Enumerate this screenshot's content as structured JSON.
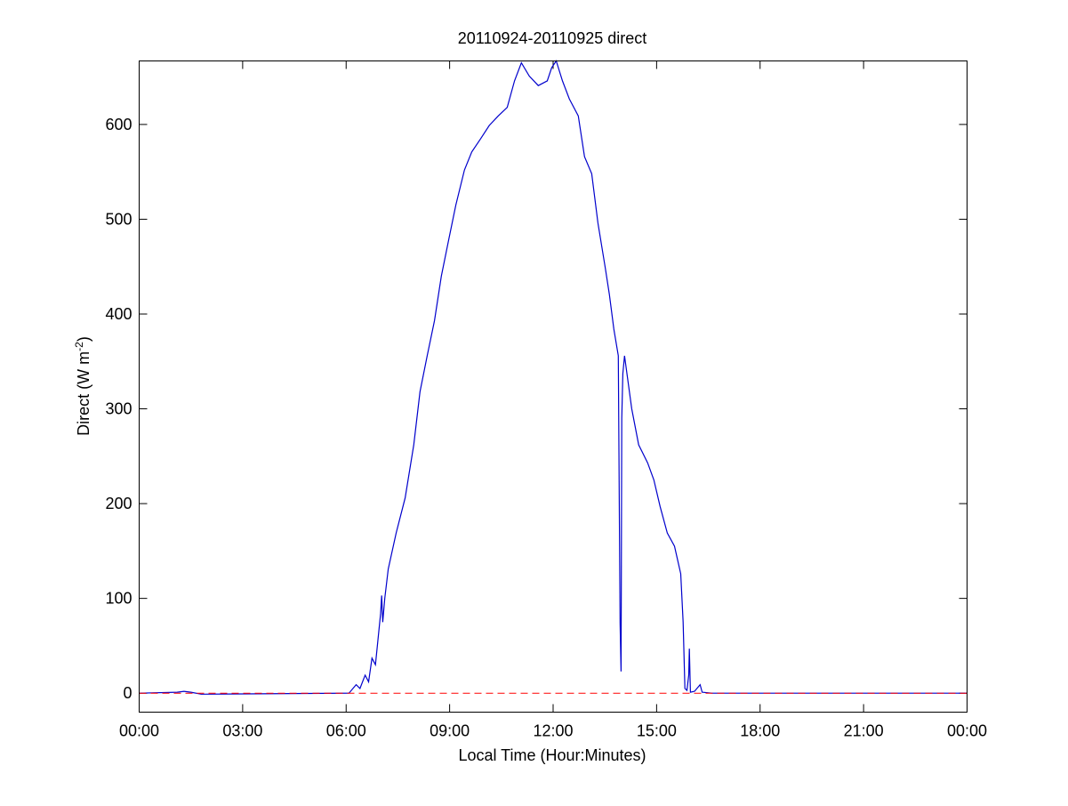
{
  "chart_data": {
    "type": "line",
    "title": "20110924-20110925 direct",
    "xlabel": "Local Time (Hour:Minutes)",
    "ylabel": "Direct (W m",
    "ylabel_superscript": "-2",
    "ylabel_suffix": ")",
    "x_unit": "hours",
    "xlim": [
      0,
      24
    ],
    "ylim": [
      -20,
      667
    ],
    "x_ticks": [
      0,
      3,
      6,
      9,
      12,
      15,
      18,
      21,
      24
    ],
    "x_tick_labels": [
      "00:00",
      "03:00",
      "06:00",
      "09:00",
      "12:00",
      "15:00",
      "18:00",
      "21:00",
      "00:00"
    ],
    "y_ticks": [
      0,
      100,
      200,
      300,
      400,
      500,
      600
    ],
    "y_tick_labels": [
      "0",
      "100",
      "200",
      "300",
      "400",
      "500",
      "600"
    ],
    "grid": false,
    "legend": "none",
    "series": [
      {
        "color": "#0000cc",
        "x": [
          0,
          1.1,
          1.3,
          1.5,
          1.8,
          6.08,
          6.29,
          6.4,
          6.55,
          6.65,
          6.75,
          6.85,
          7.0,
          7.03,
          7.06,
          7.12,
          7.22,
          7.45,
          7.71,
          7.96,
          8.14,
          8.35,
          8.56,
          8.76,
          8.97,
          9.18,
          9.43,
          9.64,
          9.9,
          10.15,
          10.41,
          10.67,
          10.88,
          11.08,
          11.31,
          11.57,
          11.83,
          11.96,
          12.09,
          12.27,
          12.47,
          12.73,
          12.91,
          13.12,
          13.3,
          13.51,
          13.63,
          13.76,
          13.89,
          13.94,
          13.97,
          13.99,
          14.02,
          14.07,
          14.28,
          14.48,
          14.74,
          14.92,
          15.1,
          15.31,
          15.52,
          15.7,
          15.77,
          15.82,
          15.88,
          15.93,
          15.95,
          15.98,
          16.1,
          16.26,
          16.32,
          16.6,
          24
        ],
        "y": [
          0,
          1,
          2,
          1,
          -1,
          0,
          9,
          5,
          19,
          12,
          37,
          30,
          84,
          103,
          75,
          100,
          131,
          169,
          206,
          262,
          318,
          356,
          393,
          440,
          478,
          515,
          552,
          571,
          585,
          599,
          609,
          618,
          646,
          665,
          651,
          641,
          646,
          660,
          667,
          646,
          627,
          609,
          566,
          548,
          496,
          449,
          421,
          384,
          356,
          75,
          23,
          290,
          337,
          356,
          300,
          262,
          243,
          225,
          197,
          169,
          155,
          126,
          75,
          5,
          3,
          19,
          47,
          1,
          2,
          9,
          1,
          0,
          0
        ]
      }
    ],
    "reference_line": {
      "y": 0,
      "color": "#ff0000",
      "style": "dashed"
    }
  }
}
